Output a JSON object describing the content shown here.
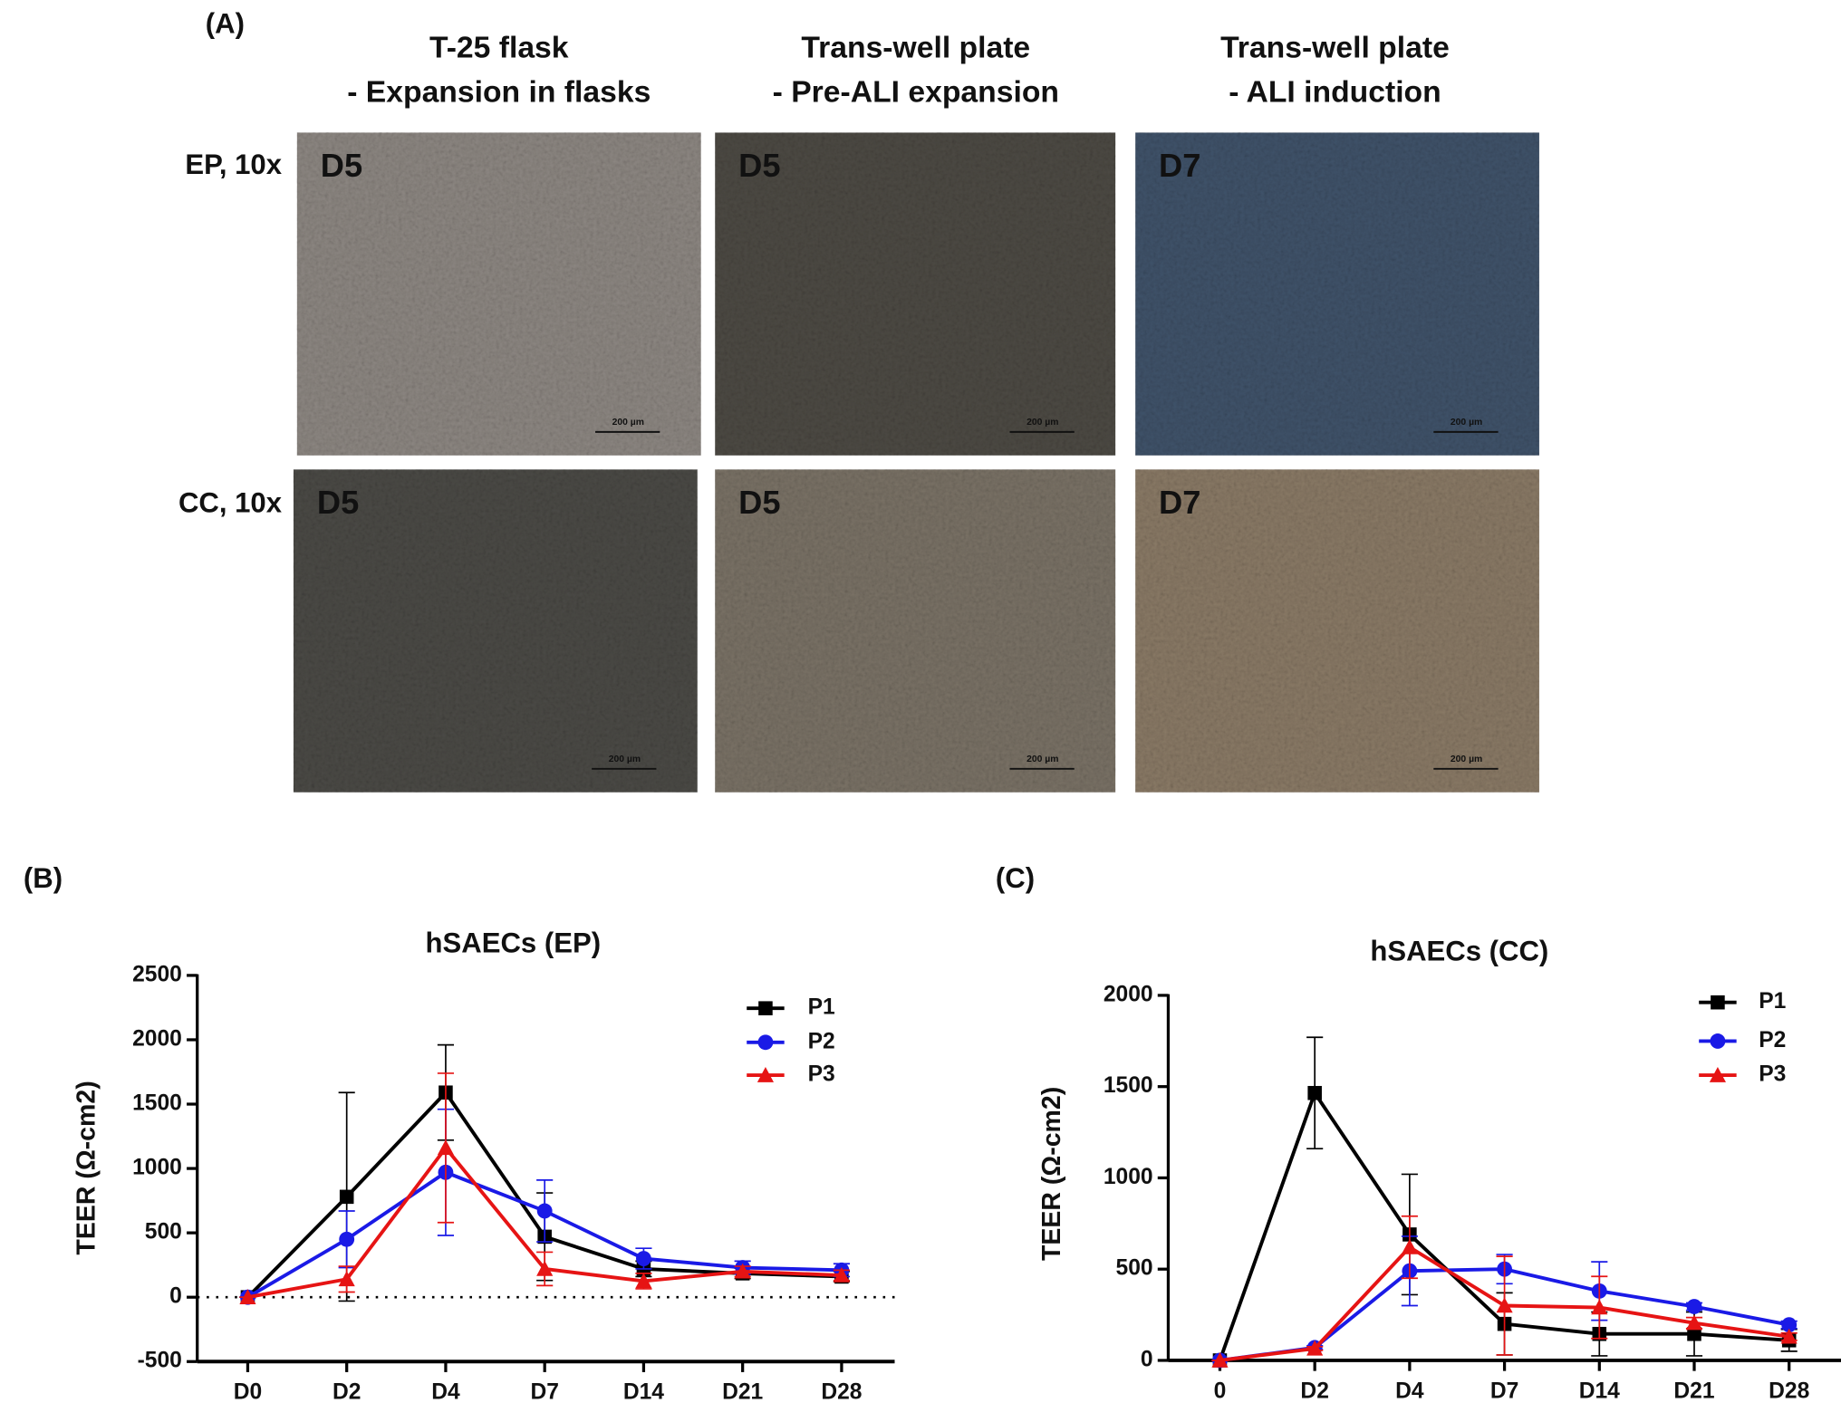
{
  "panel_a": {
    "panel_label": "(A)",
    "columns": [
      [
        "T-25 flask",
        "- Expansion in flasks"
      ],
      [
        "Trans-well plate",
        "- Pre-ALI expansion"
      ],
      [
        "Trans-well plate",
        "- ALI induction"
      ]
    ],
    "rows": [
      {
        "label": "EP, 10x",
        "images": [
          {
            "day": "D5",
            "scale": "200 µm"
          },
          {
            "day": "D5",
            "scale": "200 µm"
          },
          {
            "day": "D7",
            "scale": "200 µm"
          }
        ]
      },
      {
        "label": "CC, 10x",
        "images": [
          {
            "day": "D5",
            "scale": "200 µm"
          },
          {
            "day": "D5",
            "scale": "200 µm"
          },
          {
            "day": "D7",
            "scale": "200 µm"
          }
        ]
      }
    ]
  },
  "chart_data": [
    {
      "type": "line",
      "panel_label": "(B)",
      "title": "hSAECs (EP)",
      "y_label": "TEER (Ω-cm2)",
      "categories": [
        "D0",
        "D2",
        "D4",
        "D7",
        "D14",
        "D21",
        "D28"
      ],
      "ylim": [
        -500,
        2500
      ],
      "yticks": [
        -500,
        0,
        500,
        1000,
        1500,
        2000,
        2500
      ],
      "zero_line": true,
      "series": [
        {
          "name": "P1",
          "color": "#000000",
          "marker": "square",
          "values": [
            0,
            780,
            1590,
            470,
            220,
            185,
            160
          ],
          "errors": [
            0,
            810,
            370,
            340,
            60,
            40,
            40
          ]
        },
        {
          "name": "P2",
          "color": "#1a1ae6",
          "marker": "circle",
          "values": [
            0,
            450,
            970,
            670,
            300,
            230,
            210
          ],
          "errors": [
            0,
            220,
            490,
            240,
            80,
            50,
            50
          ]
        },
        {
          "name": "P3",
          "color": "#e61414",
          "marker": "triangle",
          "values": [
            0,
            140,
            1160,
            220,
            125,
            200,
            170
          ],
          "errors": [
            0,
            100,
            580,
            130,
            60,
            40,
            40
          ]
        }
      ]
    },
    {
      "type": "line",
      "panel_label": "(C)",
      "title": "hSAECs (CC)",
      "y_label": "TEER (Ω-cm2)",
      "categories": [
        "0",
        "D2",
        "D4",
        "D7",
        "D14",
        "D21",
        "D28"
      ],
      "ylim": [
        0,
        2000
      ],
      "yticks": [
        0,
        500,
        1000,
        1500,
        2000
      ],
      "zero_line": false,
      "series": [
        {
          "name": "P1",
          "color": "#000000",
          "marker": "square",
          "values": [
            0,
            1465,
            690,
            200,
            145,
            145,
            110
          ],
          "errors": [
            0,
            305,
            330,
            170,
            120,
            120,
            60
          ]
        },
        {
          "name": "P2",
          "color": "#1a1ae6",
          "marker": "circle",
          "values": [
            0,
            70,
            490,
            500,
            380,
            295,
            195
          ],
          "errors": [
            0,
            10,
            190,
            80,
            160,
            20,
            20
          ]
        },
        {
          "name": "P3",
          "color": "#e61414",
          "marker": "triangle",
          "values": [
            0,
            65,
            620,
            300,
            290,
            205,
            130
          ],
          "errors": [
            0,
            10,
            170,
            270,
            170,
            30,
            20
          ]
        }
      ]
    }
  ]
}
